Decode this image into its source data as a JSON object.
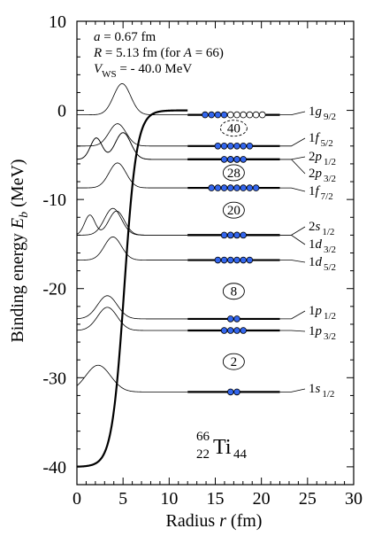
{
  "chart_data": {
    "type": "line",
    "xlabel": "Radius r (fm)",
    "ylabel": "Binding energy E_b (MeV)",
    "xlim": [
      0,
      30
    ],
    "ylim": [
      -42,
      10
    ],
    "x_ticks": [
      "0",
      "5",
      "10",
      "15",
      "20",
      "25",
      "30"
    ],
    "y_ticks": [
      "-40",
      "-30",
      "-20",
      "-10",
      "0",
      "10"
    ],
    "parameters": {
      "line1": {
        "prefix": "a",
        "value": " = 0.67 fm"
      },
      "line2": {
        "prefix": "R",
        "value": " = 5.13 fm (for ",
        "a_symbol": "A",
        "a_value": " = 66)"
      },
      "line3": {
        "prefix": "V",
        "sub": "WS",
        "value": " = - 40.0 MeV"
      }
    },
    "potential": {
      "depth": -40.0,
      "radius_R": 5.13,
      "diffuseness_a": 0.67,
      "r_max": 12
    },
    "levels": [
      {
        "n": "1",
        "l": "g",
        "j": "9/2",
        "energy": -0.5,
        "filled": 4,
        "capacity": 10
      },
      {
        "n": "1",
        "l": "f",
        "j": "5/2",
        "energy": -4.0,
        "filled": 6,
        "capacity": 6
      },
      {
        "n": "2",
        "l": "p",
        "j": "1/2",
        "energy": -5.5,
        "filled": 2,
        "capacity": 2
      },
      {
        "n": "2",
        "l": "p",
        "j": "3/2",
        "energy": -5.5,
        "filled": 4,
        "capacity": 4
      },
      {
        "n": "1",
        "l": "f",
        "j": "7/2",
        "energy": -8.7,
        "filled": 8,
        "capacity": 8
      },
      {
        "n": "2",
        "l": "s",
        "j": "1/2",
        "energy": -14.0,
        "filled": 2,
        "capacity": 2
      },
      {
        "n": "1",
        "l": "d",
        "j": "3/2",
        "energy": -14.0,
        "filled": 4,
        "capacity": 4
      },
      {
        "n": "1",
        "l": "d",
        "j": "5/2",
        "energy": -16.8,
        "filled": 6,
        "capacity": 6
      },
      {
        "n": "1",
        "l": "p",
        "j": "1/2",
        "energy": -23.4,
        "filled": 2,
        "capacity": 2
      },
      {
        "n": "1",
        "l": "p",
        "j": "3/2",
        "energy": -24.7,
        "filled": 4,
        "capacity": 4
      },
      {
        "n": "1",
        "l": "s",
        "j": "1/2",
        "energy": -31.6,
        "filled": 2,
        "capacity": 2
      }
    ],
    "magic_numbers": [
      {
        "value": "40",
        "energy": -2.0,
        "dashed": true
      },
      {
        "value": "28",
        "energy": -7.0,
        "dashed": false
      },
      {
        "value": "20",
        "energy": -11.2,
        "dashed": false
      },
      {
        "value": "8",
        "energy": -20.3,
        "dashed": false
      },
      {
        "value": "2",
        "energy": -28.2,
        "dashed": false
      }
    ],
    "nucleus": {
      "mass": "66",
      "proton": "22",
      "symbol": "Ti",
      "neutron": "44"
    },
    "colors": {
      "filled": "#3366ee",
      "empty": "#ffffff",
      "line": "#000000"
    },
    "grid": false,
    "legend": "none"
  }
}
